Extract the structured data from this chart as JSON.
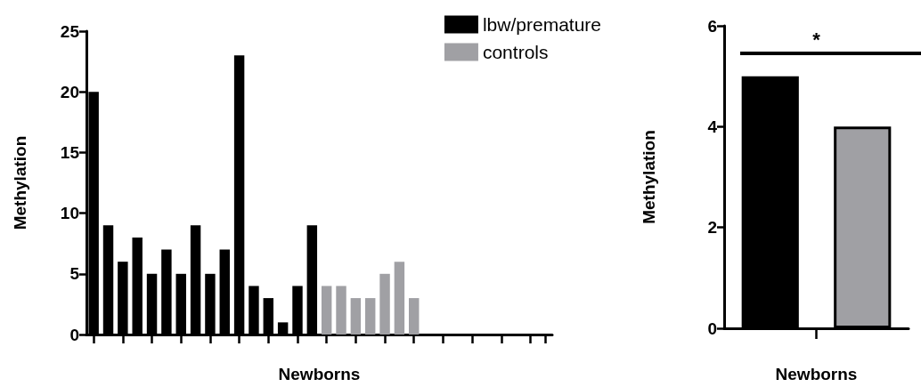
{
  "chart_data": [
    {
      "type": "bar",
      "xlabel": "Newborns",
      "ylabel": "Methylation",
      "categories": [
        null,
        null,
        null,
        null,
        null,
        null,
        null,
        null,
        null,
        null,
        null,
        null,
        null,
        null,
        null,
        null,
        null,
        null,
        null,
        null,
        null,
        null,
        null,
        null,
        null,
        null,
        null,
        null,
        null,
        null,
        null,
        null
      ],
      "series": [
        {
          "name": "lbw/premature",
          "color": "#000000",
          "values": [
            20,
            9,
            6,
            8,
            5,
            7,
            5,
            9,
            5,
            7,
            23,
            4,
            3,
            1,
            4,
            9,
            null,
            null,
            null,
            null,
            null,
            null,
            null,
            null,
            null,
            null,
            null,
            null,
            null,
            null,
            null,
            null
          ]
        },
        {
          "name": "controls",
          "color": "#a0a0a4",
          "values": [
            null,
            null,
            null,
            null,
            null,
            null,
            null,
            null,
            null,
            null,
            null,
            null,
            null,
            null,
            null,
            null,
            4,
            4,
            3,
            3,
            5,
            6,
            3,
            null,
            null,
            null,
            null,
            null,
            null,
            null,
            null,
            null
          ]
        }
      ],
      "stacked": true,
      "ylim": [
        0,
        25
      ],
      "yticks": [
        0,
        5,
        10,
        15,
        20,
        25
      ],
      "grid": false,
      "legend": "top right"
    },
    {
      "type": "bar",
      "xlabel": "Newborns",
      "ylabel": "Methylation",
      "categories": [
        null,
        null
      ],
      "values": [
        5,
        4
      ],
      "colors": [
        "#000000",
        "#a0a0a4"
      ],
      "ylim": [
        0,
        6
      ],
      "yticks": [
        0,
        2,
        4,
        6
      ],
      "grid": false,
      "legend": false,
      "annotations": [
        "*"
      ]
    }
  ]
}
